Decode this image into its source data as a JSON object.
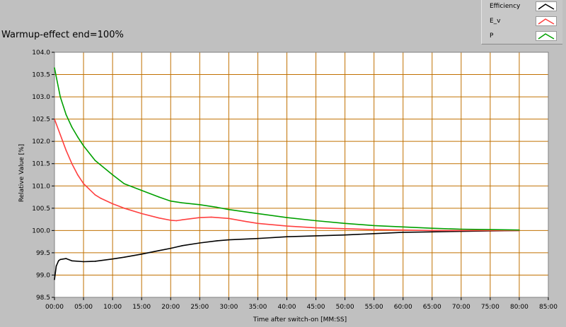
{
  "colors": {
    "window_bg": "#c0c0c0",
    "plot_bg": "#ffffff",
    "grid": "#c07000",
    "efficiency": "#000000",
    "e_v": "#ff4040",
    "p": "#00a000"
  },
  "chart_data": {
    "type": "line",
    "title": "Warmup-effect end=100%",
    "xlabel": "Time after switch-on [MM:SS]",
    "ylabel": "Relative Value [%]",
    "xlim": [
      0,
      85
    ],
    "ylim": [
      98.5,
      104.0
    ],
    "x_unit": "minutes",
    "grid": true,
    "legend_placement": "top-right",
    "x_ticks": [
      0,
      5,
      10,
      15,
      20,
      25,
      30,
      35,
      40,
      45,
      50,
      55,
      60,
      65,
      70,
      75,
      80,
      85
    ],
    "x_tick_labels": [
      "00:00",
      "05:00",
      "10:00",
      "15:00",
      "20:00",
      "25:00",
      "30:00",
      "35:00",
      "40:00",
      "45:00",
      "50:00",
      "55:00",
      "60:00",
      "65:00",
      "70:00",
      "75:00",
      "80:00",
      "85:00"
    ],
    "y_ticks": [
      98.5,
      99.0,
      99.5,
      100.0,
      100.5,
      101.0,
      101.5,
      102.0,
      102.5,
      103.0,
      103.5,
      104.0
    ],
    "y_tick_labels": [
      "98.5",
      "99.0",
      "99.5",
      "100.0",
      "100.5",
      "101.0",
      "101.5",
      "102.0",
      "102.5",
      "103.0",
      "103.5",
      "104.0"
    ],
    "series": [
      {
        "name": "Efficiency",
        "color": "#000000",
        "x": [
          0,
          0.3,
          0.7,
          1,
          2,
          3,
          5,
          7,
          10,
          12,
          15,
          18,
          20,
          22,
          25,
          28,
          30,
          35,
          40,
          45,
          50,
          55,
          60,
          65,
          70,
          75,
          80
        ],
        "y": [
          98.9,
          99.2,
          99.32,
          99.35,
          99.37,
          99.32,
          99.3,
          99.31,
          99.36,
          99.4,
          99.47,
          99.55,
          99.6,
          99.66,
          99.72,
          99.77,
          99.79,
          99.82,
          99.86,
          99.88,
          99.9,
          99.93,
          99.96,
          99.97,
          99.98,
          99.99,
          100.0
        ]
      },
      {
        "name": "E_v",
        "color": "#ff4040",
        "x": [
          0,
          1,
          2,
          3,
          4,
          5,
          7,
          8,
          10,
          12,
          15,
          18,
          20,
          21,
          22,
          25,
          27,
          30,
          33,
          35,
          40,
          45,
          50,
          55,
          60,
          65,
          70,
          75,
          80
        ],
        "y": [
          102.5,
          102.15,
          101.8,
          101.5,
          101.25,
          101.05,
          100.8,
          100.72,
          100.6,
          100.5,
          100.38,
          100.28,
          100.23,
          100.22,
          100.24,
          100.29,
          100.3,
          100.27,
          100.2,
          100.16,
          100.1,
          100.06,
          100.04,
          100.02,
          100.01,
          100.0,
          100.0,
          100.0,
          100.0
        ]
      },
      {
        "name": "P",
        "color": "#00a000",
        "x": [
          0,
          1,
          2,
          3,
          4,
          5,
          7,
          10,
          12,
          15,
          18,
          20,
          22,
          25,
          28,
          30,
          35,
          40,
          45,
          50,
          55,
          60,
          65,
          70,
          75,
          80
        ],
        "y": [
          103.65,
          103.0,
          102.6,
          102.32,
          102.1,
          101.9,
          101.57,
          101.25,
          101.05,
          100.9,
          100.75,
          100.66,
          100.62,
          100.58,
          100.52,
          100.47,
          100.38,
          100.29,
          100.22,
          100.16,
          100.11,
          100.08,
          100.05,
          100.03,
          100.02,
          100.01
        ]
      }
    ]
  }
}
